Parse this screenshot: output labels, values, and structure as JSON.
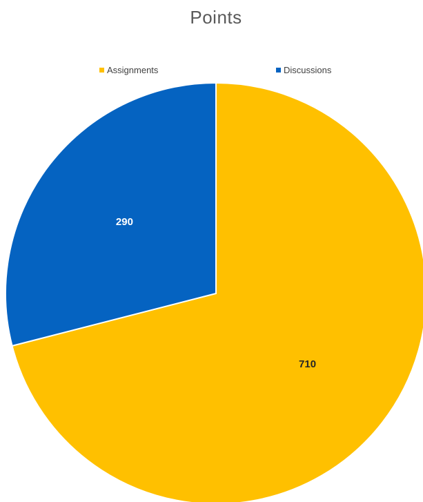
{
  "chart_data": {
    "type": "pie",
    "title": "Points",
    "legend_position": "top",
    "categories": [
      "Assignments",
      "Discussions"
    ],
    "values": [
      710,
      290
    ],
    "colors": [
      "#FFC000",
      "#0563C1"
    ],
    "data_labels": [
      "710",
      "290"
    ],
    "label_colors": [
      "#262626",
      "#ffffff"
    ]
  }
}
